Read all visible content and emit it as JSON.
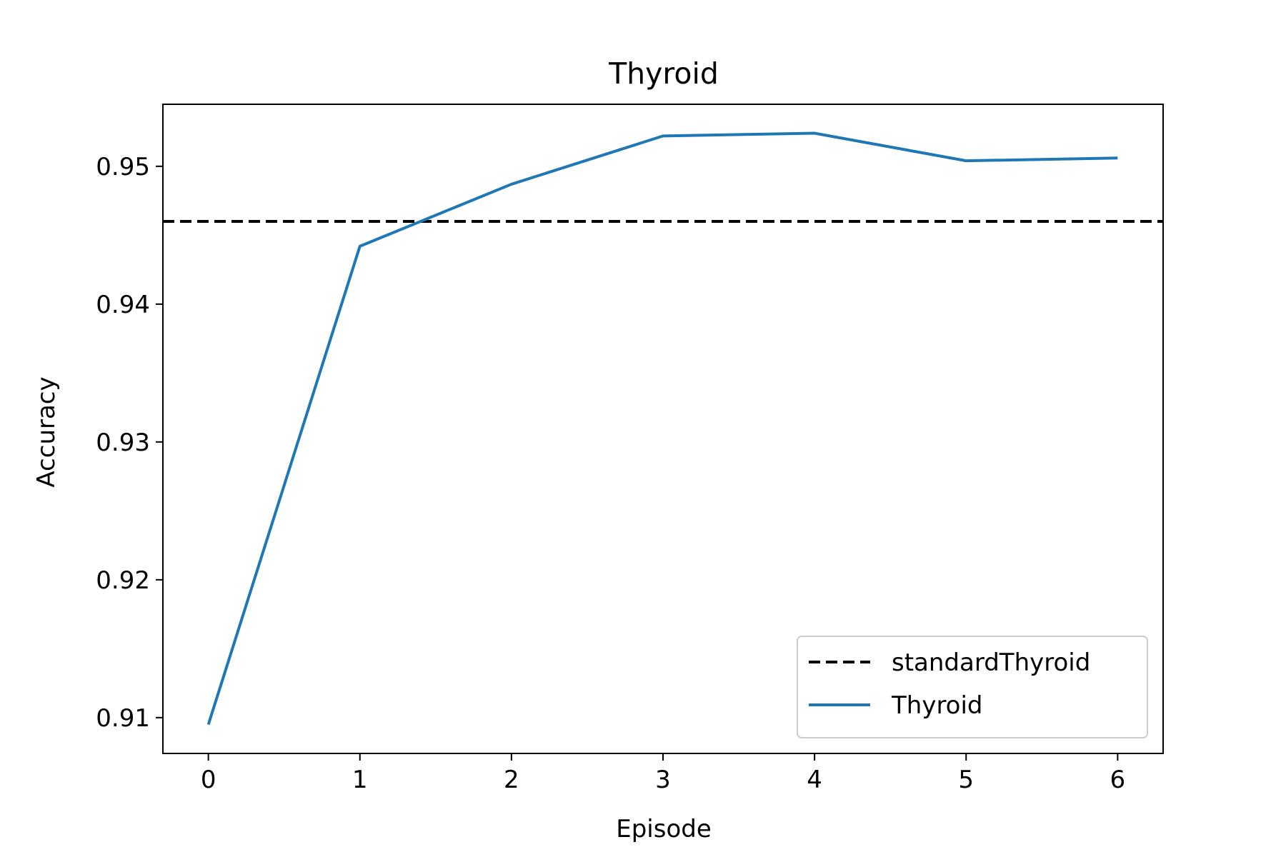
{
  "chart_data": {
    "type": "line",
    "title": "Thyroid",
    "xlabel": "Episode",
    "ylabel": "Accuracy",
    "x": [
      0,
      1,
      2,
      3,
      4,
      5,
      6
    ],
    "xlim": [
      -0.3,
      6.3
    ],
    "ylim": [
      0.9074,
      0.9545
    ],
    "x_ticks": [
      0,
      1,
      2,
      3,
      4,
      5,
      6
    ],
    "y_ticks": [
      0.91,
      0.92,
      0.93,
      0.94,
      0.95
    ],
    "grid": false,
    "legend_position": "lower-right",
    "series": [
      {
        "name": "Thyroid",
        "color": "#1f77b4",
        "style": "solid",
        "values": [
          0.9095,
          0.9442,
          0.9487,
          0.9522,
          0.9524,
          0.9504,
          0.9506
        ]
      }
    ],
    "reference_lines": [
      {
        "name": "standardThyroid",
        "color": "#000000",
        "style": "dashed",
        "y": 0.946
      }
    ]
  }
}
